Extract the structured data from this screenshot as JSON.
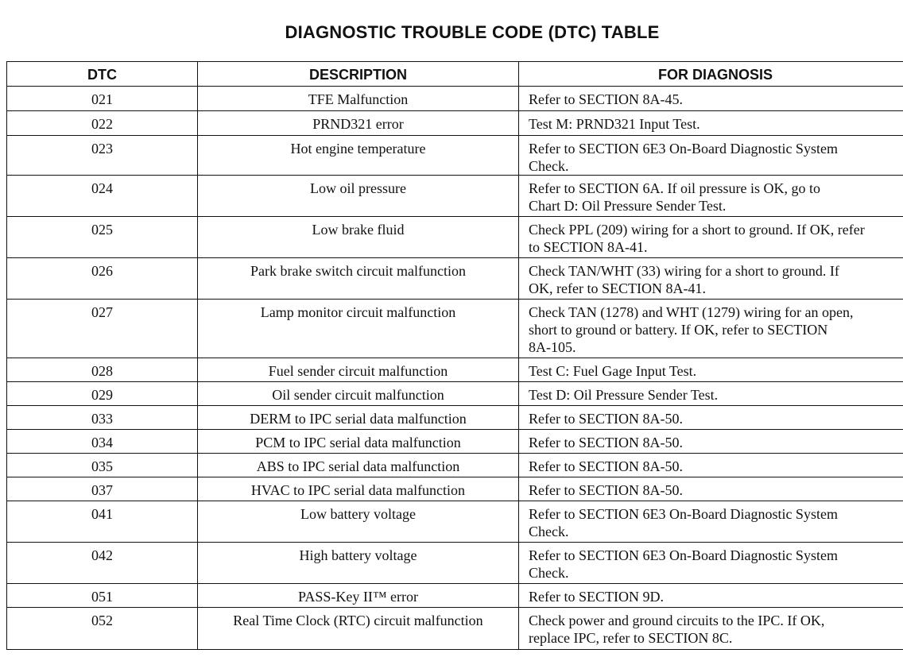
{
  "title": "DIAGNOSTIC TROUBLE CODE (DTC) TABLE",
  "headers": {
    "dtc": "DTC",
    "description": "DESCRIPTION",
    "diagnosis": "FOR DIAGNOSIS"
  },
  "rows": [
    {
      "dtc": "021",
      "description": "TFE Malfunction",
      "diagnosis": "Refer to SECTION 8A-45."
    },
    {
      "dtc": "022",
      "description": "PRND321 error",
      "diagnosis": "Test M: PRND321 Input Test."
    },
    {
      "dtc": "023",
      "description": "Hot engine temperature",
      "diagnosis": "Refer to SECTION 6E3 On-Board Diagnostic System\nCheck."
    },
    {
      "dtc": "024",
      "description": "Low oil pressure",
      "diagnosis": "Refer to SECTION 6A. If oil pressure is OK, go to\nChart D: Oil Pressure Sender Test."
    },
    {
      "dtc": "025",
      "description": "Low brake fluid",
      "diagnosis": "Check PPL (209) wiring for a short to ground. If OK, refer\nto SECTION 8A-41."
    },
    {
      "dtc": "026",
      "description": "Park brake switch circuit malfunction",
      "diagnosis": "Check TAN/WHT (33) wiring for a short to ground. If\nOK, refer to SECTION 8A-41."
    },
    {
      "dtc": "027",
      "description": "Lamp monitor circuit malfunction",
      "diagnosis": "Check TAN (1278) and WHT (1279) wiring for an open,\nshort to ground or battery. If OK, refer to SECTION\n8A-105."
    },
    {
      "dtc": "028",
      "description": "Fuel sender circuit malfunction",
      "diagnosis": "Test C: Fuel Gage Input Test."
    },
    {
      "dtc": "029",
      "description": "Oil sender circuit malfunction",
      "diagnosis": "Test D: Oil Pressure Sender Test."
    },
    {
      "dtc": "033",
      "description": "DERM to IPC serial data malfunction",
      "diagnosis": "Refer to SECTION 8A-50."
    },
    {
      "dtc": "034",
      "description": "PCM to IPC serial data malfunction",
      "diagnosis": "Refer to SECTION 8A-50."
    },
    {
      "dtc": "035",
      "description": "ABS to IPC serial data malfunction",
      "diagnosis": "Refer to SECTION 8A-50."
    },
    {
      "dtc": "037",
      "description": "HVAC to IPC serial data malfunction",
      "diagnosis": "Refer to SECTION 8A-50."
    },
    {
      "dtc": "041",
      "description": "Low battery voltage",
      "diagnosis": "Refer to SECTION 6E3 On-Board Diagnostic System\nCheck."
    },
    {
      "dtc": "042",
      "description": "High battery voltage",
      "diagnosis": "Refer to SECTION 6E3 On-Board Diagnostic System\nCheck."
    },
    {
      "dtc": "051",
      "description": "PASS-Key II™ error",
      "diagnosis": "Refer to SECTION 9D."
    },
    {
      "dtc": "052",
      "description": "Real Time Clock (RTC) circuit malfunction",
      "diagnosis": "Check power and ground circuits to the IPC. If OK,\nreplace IPC, refer to SECTION 8C."
    }
  ]
}
